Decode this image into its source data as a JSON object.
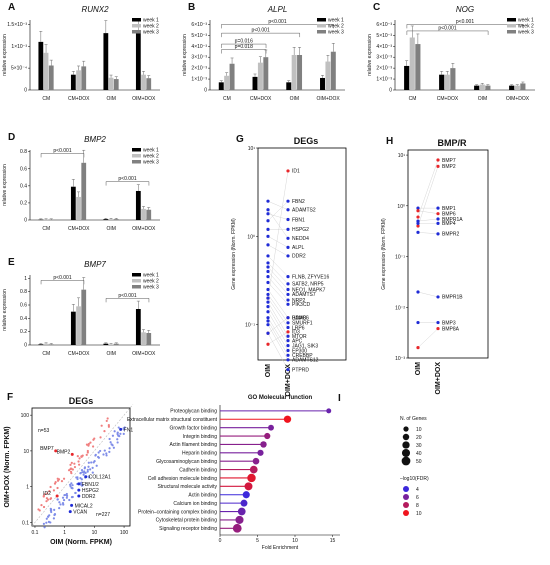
{
  "colors": {
    "w1": "#000000",
    "w2": "#c0c0c0",
    "w3": "#808080",
    "red": "#e8262a",
    "blue": "#1f2bd6",
    "pink": "#f07f7f",
    "lightblue": "#7f8de8"
  },
  "legend_weeks": [
    "week 1",
    "week 2",
    "week 3"
  ],
  "bar_panels": [
    {
      "id": "A",
      "gene": "RUNX2",
      "ylabel": "relative expression",
      "ymax": 0.0016,
      "yticks": [
        {
          "v": 0,
          "t": "0"
        },
        {
          "v": 0.0005,
          "t": "5×10⁻⁴"
        },
        {
          "v": 0.001,
          "t": "1×10⁻³"
        },
        {
          "v": 0.0015,
          "t": "1.5×10⁻³"
        }
      ],
      "categories": [
        "CM",
        "CM+DOX",
        "OIM",
        "OIM+DOX"
      ],
      "values": [
        [
          0.0011,
          0.00085,
          0.00056
        ],
        [
          0.00035,
          0.00045,
          0.00054
        ],
        [
          0.0013,
          0.00028,
          0.00025
        ],
        [
          0.0013,
          0.00035,
          0.00027
        ]
      ],
      "pvals": []
    },
    {
      "id": "B",
      "gene": "ALPL",
      "ylabel": "relative expression",
      "ymax": 0.0064,
      "yticks": [
        {
          "v": 0,
          "t": "0"
        },
        {
          "v": 0.001,
          "t": "1×10⁻³"
        },
        {
          "v": 0.002,
          "t": "2×10⁻³"
        },
        {
          "v": 0.003,
          "t": "3×10⁻³"
        },
        {
          "v": 0.004,
          "t": "4×10⁻³"
        },
        {
          "v": 0.005,
          "t": "5×10⁻³"
        },
        {
          "v": 0.006,
          "t": "6×10⁻³"
        }
      ],
      "categories": [
        "CM",
        "CM+DOX",
        "OIM",
        "OIM+DOX"
      ],
      "values": [
        [
          0.0007,
          0.0013,
          0.0024
        ],
        [
          0.0012,
          0.0025,
          0.003
        ],
        [
          0.0007,
          0.0032,
          0.0032
        ],
        [
          0.0011,
          0.0026,
          0.0035
        ]
      ],
      "pvals": [
        {
          "label": "p=0.018",
          "from": 0,
          "to": 1,
          "level": 0.0037
        },
        {
          "label": "p=0.016",
          "from": 0,
          "to": 1,
          "level": 0.0042
        },
        {
          "label": "p<0.001",
          "from": 0,
          "to": 2,
          "level": 0.0052
        },
        {
          "label": "p<0.001",
          "from": 0,
          "to": 3,
          "level": 0.006
        }
      ]
    },
    {
      "id": "C",
      "gene": "NOG",
      "ylabel": "relative expression",
      "ymax": 0.0064,
      "yticks": [
        {
          "v": 0,
          "t": "0"
        },
        {
          "v": 0.001,
          "t": "1×10⁻³"
        },
        {
          "v": 0.002,
          "t": "2×10⁻³"
        },
        {
          "v": 0.003,
          "t": "3×10⁻³"
        },
        {
          "v": 0.004,
          "t": "4×10⁻³"
        },
        {
          "v": 0.005,
          "t": "5×10⁻³"
        },
        {
          "v": 0.006,
          "t": "6×10⁻³"
        }
      ],
      "categories": [
        "CM",
        "CM+DOX",
        "OIM",
        "OIM+DOX"
      ],
      "values": [
        [
          0.0022,
          0.0048,
          0.0042
        ],
        [
          0.0014,
          0.0014,
          0.002
        ],
        [
          0.0004,
          0.0005,
          0.0004
        ],
        [
          0.0004,
          0.0004,
          0.0006
        ]
      ],
      "pvals": [
        {
          "label": "p<0.001",
          "from": 0,
          "to": 2,
          "level": 0.0054
        },
        {
          "label": "p<0.001",
          "from": 0,
          "to": 3,
          "level": 0.006
        }
      ]
    },
    {
      "id": "D",
      "gene": "BMP2",
      "ylabel": "relative expression",
      "ymax": 0.82,
      "yticks": [
        {
          "v": 0,
          "t": "0"
        },
        {
          "v": 0.2,
          "t": "0.2"
        },
        {
          "v": 0.4,
          "t": "0.4"
        },
        {
          "v": 0.6,
          "t": "0.6"
        },
        {
          "v": 0.8,
          "t": "0.8"
        }
      ],
      "categories": [
        "CM",
        "CM+DOX",
        "OIM",
        "OIM+DOX"
      ],
      "values": [
        [
          0.004,
          0.004,
          0.004
        ],
        [
          0.39,
          0.27,
          0.67
        ],
        [
          0.01,
          0.01,
          0.01
        ],
        [
          0.34,
          0.13,
          0.12
        ]
      ],
      "pvals": [
        {
          "label": "p<0.001",
          "from": 0,
          "to": 1,
          "level": 0.78
        },
        {
          "label": "p<0.001",
          "from": 2,
          "to": 3,
          "level": 0.45
        }
      ]
    },
    {
      "id": "E",
      "gene": "BMP7",
      "ylabel": "relative expression",
      "ymax": 1.05,
      "yticks": [
        {
          "v": 0,
          "t": "0"
        },
        {
          "v": 0.2,
          "t": "0.2"
        },
        {
          "v": 0.4,
          "t": "0.4"
        },
        {
          "v": 0.6,
          "t": "0.6"
        },
        {
          "v": 0.8,
          "t": "0.8"
        },
        {
          "v": 1.0,
          "t": "1"
        }
      ],
      "categories": [
        "CM",
        "CM+DOX",
        "OIM",
        "OIM+DOX"
      ],
      "values": [
        [
          0.01,
          0.02,
          0.01
        ],
        [
          0.5,
          0.58,
          0.83
        ],
        [
          0.02,
          0.01,
          0.02
        ],
        [
          0.54,
          0.19,
          0.18
        ]
      ],
      "pvals": [
        {
          "label": "p<0.001",
          "from": 0,
          "to": 1,
          "level": 0.97
        },
        {
          "label": "p<0.001",
          "from": 2,
          "to": 3,
          "level": 0.7
        }
      ]
    }
  ],
  "panel_F": {
    "id": "F",
    "title": "DEGs",
    "xlabel": "OIM (Norm. FPKM)",
    "ylabel": "OIM+DOX (Norm. FPKM)",
    "xticks": [
      "0.1",
      "1",
      "10",
      "100"
    ],
    "yticks": [
      "0.1",
      "1",
      "10",
      "100"
    ],
    "n_up": "n=53",
    "n_down": "n=227",
    "labels_up": [
      {
        "text": "BMP7",
        "x": 0.5,
        "y": 10
      },
      {
        "text": "BMP2",
        "x": 1.8,
        "y": 8
      },
      {
        "text": "ID2",
        "x": 0.22,
        "y": 0.55
      }
    ],
    "labels_down": [
      {
        "text": "FN1",
        "x": 90,
        "y": 40
      },
      {
        "text": "COL12A1",
        "x": 6,
        "y": 1.9
      },
      {
        "text": "FBN1/2",
        "x": 3.5,
        "y": 1.2
      },
      {
        "text": "HSPG2",
        "x": 3.5,
        "y": 0.8
      },
      {
        "text": "DDR2",
        "x": 3.5,
        "y": 0.55
      },
      {
        "text": "MICAL2",
        "x": 2,
        "y": 0.3
      },
      {
        "text": "VCAN",
        "x": 1.8,
        "y": 0.2
      }
    ]
  },
  "panel_G": {
    "id": "G",
    "title": "DEGs",
    "ylabel": "Gene expression (Norm. FPKM)",
    "xcats": [
      "OIM",
      "OIM+DOX"
    ],
    "yticks": [
      "10⁻¹",
      "10⁰",
      "10¹"
    ],
    "genes": [
      {
        "name": "ID1",
        "oim": 0.2,
        "dox": 5.5,
        "up": true
      },
      {
        "name": "FBN2",
        "oim": 1.5,
        "dox": 2.5,
        "up": false
      },
      {
        "name": "ADAMTS2",
        "oim": 2.5,
        "dox": 2.0,
        "up": false
      },
      {
        "name": "FBN1",
        "oim": 1.8,
        "dox": 1.55,
        "up": false
      },
      {
        "name": "HSPG2",
        "oim": 1.2,
        "dox": 1.2,
        "up": false
      },
      {
        "name": "NEDD4",
        "oim": 2.0,
        "dox": 0.95,
        "up": false
      },
      {
        "name": "ALPL",
        "oim": 1.0,
        "dox": 0.75,
        "up": false
      },
      {
        "name": "DDR2",
        "oim": 0.8,
        "dox": 0.6,
        "up": false
      },
      {
        "name": "FLNB, ZFYVE16",
        "oim": 0.6,
        "dox": 0.35,
        "up": false
      },
      {
        "name": "SATB2, NRP5",
        "oim": 0.5,
        "dox": 0.29,
        "up": false
      },
      {
        "name": "NEO1, MAPK7",
        "oim": 0.45,
        "dox": 0.25,
        "up": false
      },
      {
        "name": "ADAMTS7",
        "oim": 0.4,
        "dox": 0.22,
        "up": false
      },
      {
        "name": "NRP2",
        "oim": 0.35,
        "dox": 0.19,
        "up": false
      },
      {
        "name": "PIK3CD",
        "oim": 0.3,
        "dox": 0.17,
        "up": false
      },
      {
        "name": "BAMBI",
        "oim": 0.08,
        "dox": 0.12,
        "up": true
      },
      {
        "name": "HDAC6",
        "oim": 0.25,
        "dox": 0.12,
        "up": false
      },
      {
        "name": "SMURF1",
        "oim": 0.22,
        "dox": 0.105,
        "up": false
      },
      {
        "name": "LRP6",
        "oim": 0.2,
        "dox": 0.093,
        "up": false
      },
      {
        "name": "ID3",
        "oim": 0.06,
        "dox": 0.083,
        "up": true
      },
      {
        "name": "MTOR",
        "oim": 0.18,
        "dox": 0.074,
        "up": false
      },
      {
        "name": "APC",
        "oim": 0.16,
        "dox": 0.066,
        "up": false
      },
      {
        "name": "JAG1, SIK3",
        "oim": 0.14,
        "dox": 0.058,
        "up": false
      },
      {
        "name": "EP300",
        "oim": 0.12,
        "dox": 0.051,
        "up": false
      },
      {
        "name": "CREBBP",
        "oim": 0.11,
        "dox": 0.045,
        "up": false
      },
      {
        "name": "ADAMTS12",
        "oim": 0.1,
        "dox": 0.04,
        "up": false
      },
      {
        "name": "PTPRD",
        "oim": 0.08,
        "dox": 0.031,
        "up": false
      }
    ]
  },
  "panel_H": {
    "id": "H",
    "title": "BMP/R",
    "ylabel": "Gene expression (Norm. FPKM)",
    "xcats": [
      "OIM",
      "OIM+DOX"
    ],
    "yticks": [
      "10⁻³",
      "10⁻²",
      "10⁻¹",
      "10⁰",
      "10¹"
    ],
    "genes": [
      {
        "name": "BMP7",
        "oim": 0.6,
        "dox": 8,
        "up": true
      },
      {
        "name": "BMP2",
        "oim": 0.4,
        "dox": 6,
        "up": true
      },
      {
        "name": "BMP1",
        "oim": 0.9,
        "dox": 0.9,
        "up": false
      },
      {
        "name": "BMP6",
        "oim": 0.8,
        "dox": 0.7,
        "up": true
      },
      {
        "name": "BMPR1A",
        "oim": 0.5,
        "dox": 0.55,
        "up": false
      },
      {
        "name": "BMP4",
        "oim": 0.45,
        "dox": 0.45,
        "up": false
      },
      {
        "name": "BMPR2",
        "oim": 0.3,
        "dox": 0.28,
        "up": false
      },
      {
        "name": "BMPR1B",
        "oim": 0.02,
        "dox": 0.016,
        "up": false
      },
      {
        "name": "BMP3",
        "oim": 0.005,
        "dox": 0.005,
        "up": false
      },
      {
        "name": "BMP8A",
        "oim": 0.0016,
        "dox": 0.0038,
        "up": true
      }
    ]
  },
  "panel_I": {
    "id": "I",
    "title": "GO Molecular function",
    "xlabel": "Fold Enrichment",
    "xticks": [
      "0",
      "5",
      "10",
      "15"
    ],
    "legend_size_title": "N. of Genes",
    "legend_sizes": [
      "10",
      "20",
      "30",
      "40",
      "50"
    ],
    "legend_color_title": "–log10(FDR)",
    "legend_colors": [
      "4",
      "6",
      "8",
      "10"
    ],
    "terms": [
      {
        "name": "Proteoglycan binding",
        "fe": 14.5,
        "n": 8,
        "fdr": 5.5
      },
      {
        "name": "Extracellular matrix structural constituent",
        "fe": 9.0,
        "n": 30,
        "fdr": 10
      },
      {
        "name": "Growth factor binding",
        "fe": 6.8,
        "n": 15,
        "fdr": 6
      },
      {
        "name": "Integrin binding",
        "fe": 6.3,
        "n": 18,
        "fdr": 7
      },
      {
        "name": "Actin filament binding",
        "fe": 5.8,
        "n": 20,
        "fdr": 6.5
      },
      {
        "name": "Heparin binding",
        "fe": 5.4,
        "n": 18,
        "fdr": 6
      },
      {
        "name": "Glycosaminoglycan binding",
        "fe": 4.8,
        "n": 22,
        "fdr": 6.5
      },
      {
        "name": "Cadherin binding",
        "fe": 4.5,
        "n": 35,
        "fdr": 8
      },
      {
        "name": "Cell adhesion molecule binding",
        "fe": 4.2,
        "n": 45,
        "fdr": 9.5
      },
      {
        "name": "Structural molecule activity",
        "fe": 3.8,
        "n": 38,
        "fdr": 9
      },
      {
        "name": "Actin binding",
        "fe": 3.5,
        "n": 28,
        "fdr": 4
      },
      {
        "name": "Calcium ion binding",
        "fe": 3.2,
        "n": 25,
        "fdr": 4.5
      },
      {
        "name": "Protein–containing complex binding",
        "fe": 2.9,
        "n": 35,
        "fdr": 5.5
      },
      {
        "name": "Cytoskeletal protein binding",
        "fe": 2.6,
        "n": 40,
        "fdr": 6.5
      },
      {
        "name": "Signaling receptor binding",
        "fe": 2.3,
        "n": 50,
        "fdr": 7
      }
    ]
  }
}
